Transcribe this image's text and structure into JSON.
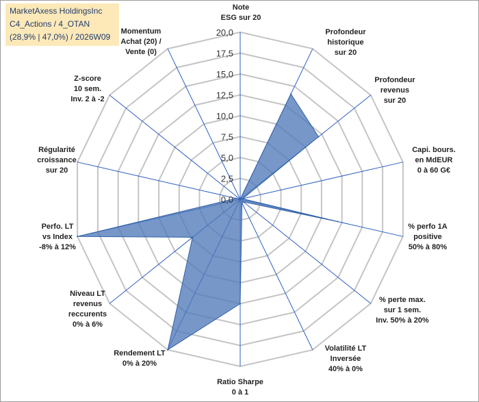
{
  "info": {
    "line1": "MarketAxess HoldingsInc",
    "line2": "C4_Actions / 4_OTAN",
    "line3": "(28,9% | 47,0%) / 2026W09"
  },
  "colors": {
    "fill": "#4f7ab8",
    "stroke": "#2f5fa8",
    "grid": "#c4c4c4",
    "spoke": "#2a5dc1",
    "box": "#fde9b8"
  },
  "chart_data": {
    "type": "radar",
    "title": "",
    "rmax": 20,
    "ticks": [
      "0,0",
      "2,5",
      "5,0",
      "7,5",
      "10,0",
      "12,5",
      "15,0",
      "17,5",
      "20,0"
    ],
    "axes": [
      {
        "lines": [
          "Note",
          "ESG sur 20"
        ]
      },
      {
        "lines": [
          "Profondeur",
          "historique",
          "sur 20"
        ]
      },
      {
        "lines": [
          "Profondeur",
          "revenus",
          "sur 20"
        ]
      },
      {
        "lines": [
          "Capi. bours.",
          "en MdEUR",
          "0 à 60 G€"
        ]
      },
      {
        "lines": [
          "% perfo 1A",
          "positive",
          "50% à 80%"
        ]
      },
      {
        "lines": [
          "% perte max.",
          "sur 1 sem.",
          "Inv. 50% à 20%"
        ]
      },
      {
        "lines": [
          "Volatilité LT",
          "Inversée",
          "40% à 0%"
        ]
      },
      {
        "lines": [
          "Ratio Sharpe",
          "0 à 1"
        ]
      },
      {
        "lines": [
          "Rendement LT",
          "0% à 20%"
        ]
      },
      {
        "lines": [
          "Niveau LT",
          "revenus",
          "reccurents",
          "0% à 6%"
        ]
      },
      {
        "lines": [
          "Perfo. LT",
          "vs Index",
          "-8% à 12%"
        ]
      },
      {
        "lines": [
          "Régularité",
          "croissance",
          "sur 20"
        ]
      },
      {
        "lines": [
          "Z-score",
          "10 sem.",
          "Inv. 2 à -2"
        ]
      },
      {
        "lines": [
          "Momentum",
          "Achat (20) /",
          "Vente (0)"
        ]
      }
    ],
    "values": [
      0,
      14,
      12,
      0.3,
      12,
      0.5,
      0.5,
      12.5,
      20,
      7.3,
      20,
      0.5,
      0,
      0
    ]
  }
}
